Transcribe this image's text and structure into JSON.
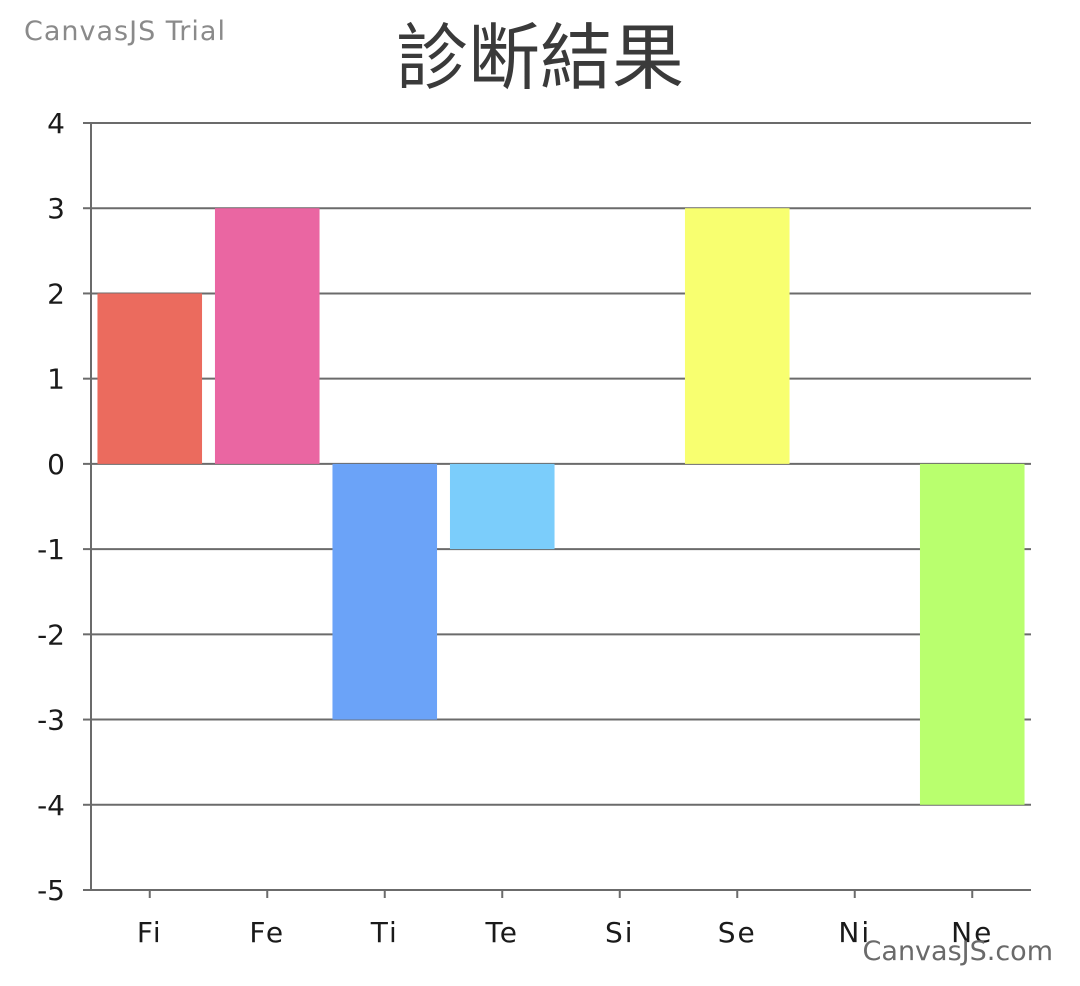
{
  "watermark": {
    "top": "CanvasJS Trial",
    "bottom": "CanvasJS.com"
  },
  "chart_data": {
    "type": "bar",
    "title": "診断結果",
    "xlabel": "",
    "ylabel": "",
    "categories": [
      "Fi",
      "Fe",
      "Ti",
      "Te",
      "Si",
      "Se",
      "Ni",
      "Ne"
    ],
    "values": [
      2,
      3,
      -3,
      -1,
      0,
      3,
      0,
      -4
    ],
    "colors": [
      "#EB6B5E",
      "#EA66A2",
      "#6BA3F8",
      "#7BCDFB",
      "#CCCCCC",
      "#F8FF70",
      "#AAAAAA",
      "#B9FF6E"
    ],
    "ylim": [
      -5,
      4
    ],
    "yticks": [
      4,
      3,
      2,
      1,
      0,
      -1,
      -2,
      -3,
      -4,
      -5
    ],
    "grid": true,
    "legend": "none"
  }
}
